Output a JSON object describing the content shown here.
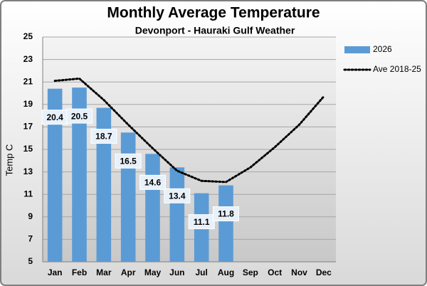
{
  "chart_data": {
    "type": "bar",
    "title": "Monthly Average Temperature",
    "subtitle": "Devonport - Hauraki Gulf Weather",
    "y_label": "Temp C",
    "categories": [
      "Jan",
      "Feb",
      "Mar",
      "Apr",
      "May",
      "Jun",
      "Jul",
      "Aug",
      "Sep",
      "Oct",
      "Nov",
      "Dec"
    ],
    "series": [
      {
        "name": "2026",
        "type": "bar",
        "color": "#5b9bd5",
        "values": [
          20.4,
          20.5,
          18.7,
          16.5,
          14.6,
          13.4,
          11.1,
          11.8,
          null,
          null,
          null,
          null
        ]
      },
      {
        "name": "Ave 2018-25",
        "type": "line",
        "color": "#000000",
        "dotted": true,
        "values": [
          21.1,
          21.3,
          19.4,
          17.2,
          15.1,
          13.1,
          12.2,
          12.1,
          13.4,
          15.2,
          17.2,
          19.7
        ]
      }
    ],
    "ylim": [
      5,
      25
    ],
    "yticks": [
      5,
      7,
      9,
      11,
      13,
      15,
      17,
      19,
      21,
      23,
      25
    ],
    "grid": true,
    "legend": "right",
    "data_labels": true
  }
}
